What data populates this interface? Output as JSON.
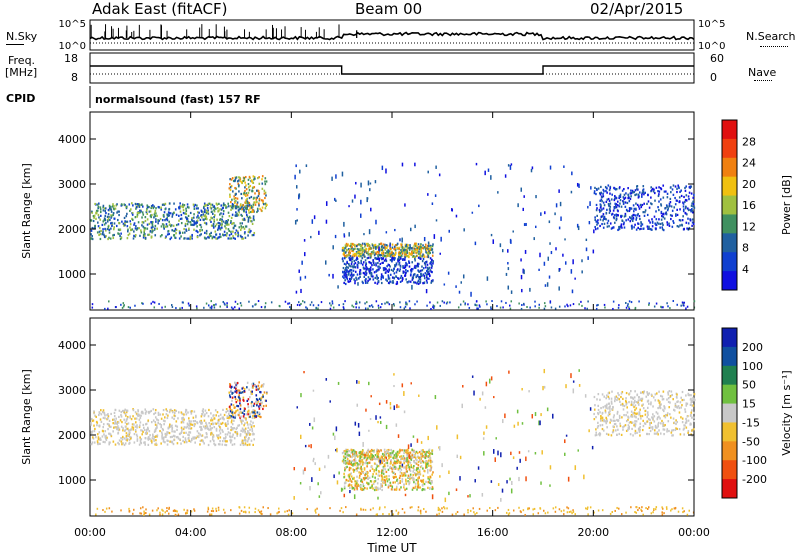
{
  "header": {
    "station": "Adak East (fitACF)",
    "beam": "Beam 00",
    "date": "02/Apr/2015"
  },
  "top_panels": {
    "nsky_label": "N.Sky",
    "nsearch_label": "N.Search",
    "freq_label_1": "Freq.",
    "freq_label_2": "[MHz]",
    "nave_label": "Nave",
    "cpid_label": "CPID",
    "cpid_value": "normalsound (fast) 157 RF",
    "noise_ticks": [
      "10^5",
      "10^0"
    ],
    "freq_ticks": [
      "18",
      "8"
    ],
    "nave_ticks": [
      "60",
      "0"
    ]
  },
  "colorbars": {
    "power": {
      "title": "Power [dB]",
      "ticks": [
        "28",
        "24",
        "20",
        "16",
        "12",
        "8",
        "4"
      ],
      "colors": [
        "#e01010",
        "#f04010",
        "#f08010",
        "#f0c010",
        "#a0c040",
        "#409060",
        "#2060a0",
        "#1040d0",
        "#1010e0"
      ]
    },
    "velocity": {
      "title": "Velocity [m s⁻¹]",
      "ticks": [
        "200",
        "100",
        "50",
        "15",
        "-15",
        "-50",
        "-100",
        "-200"
      ],
      "colors": [
        "#1020b0",
        "#1050a0",
        "#208050",
        "#70c040",
        "#c8c8c8",
        "#f0c030",
        "#f09020",
        "#f05010",
        "#e01010"
      ]
    }
  },
  "chart_data": [
    {
      "type": "heatmap",
      "name": "Power",
      "ylabel": "Slant Range [km]",
      "yticks": [
        1000,
        2000,
        3000,
        4000
      ],
      "ylim": [
        200,
        4600
      ],
      "xlim": [
        0,
        24
      ],
      "xticks": [
        "00:00",
        "04:00",
        "08:00",
        "12:00",
        "16:00",
        "20:00",
        "00:00"
      ],
      "features": [
        {
          "t0": 0.0,
          "t1": 6.5,
          "range0": 1800,
          "range1": 2600,
          "level": "mid"
        },
        {
          "t0": 5.5,
          "t1": 7.0,
          "range0": 2400,
          "range1": 3200,
          "level": "high"
        },
        {
          "t0": 10.0,
          "t1": 13.6,
          "range0": 1400,
          "range1": 1700,
          "level": "high"
        },
        {
          "t0": 10.0,
          "t1": 13.6,
          "range0": 800,
          "range1": 1400,
          "level": "low"
        },
        {
          "t0": 20.0,
          "t1": 24.0,
          "range0": 2000,
          "range1": 3000,
          "level": "low"
        }
      ]
    },
    {
      "type": "heatmap",
      "name": "Velocity",
      "ylabel": "Slant Range [km]",
      "yticks": [
        1000,
        2000,
        3000,
        4000
      ],
      "ylim": [
        200,
        4600
      ],
      "xlim": [
        0,
        24
      ],
      "xticks": [
        "00:00",
        "04:00",
        "08:00",
        "12:00",
        "16:00",
        "20:00",
        "00:00"
      ],
      "xlabel": "Time UT",
      "features": [
        {
          "t0": 0.0,
          "t1": 6.5,
          "range0": 1800,
          "range1": 2600,
          "level": "zero"
        },
        {
          "t0": 5.5,
          "t1": 7.0,
          "range0": 2400,
          "range1": 3200,
          "level": "mixed"
        },
        {
          "t0": 10.0,
          "t1": 13.6,
          "range0": 1400,
          "range1": 1700,
          "level": "neg"
        },
        {
          "t0": 10.0,
          "t1": 13.6,
          "range0": 800,
          "range1": 1400,
          "level": "neg"
        },
        {
          "t0": 20.0,
          "t1": 24.0,
          "range0": 2000,
          "range1": 3000,
          "level": "zero"
        }
      ]
    }
  ]
}
